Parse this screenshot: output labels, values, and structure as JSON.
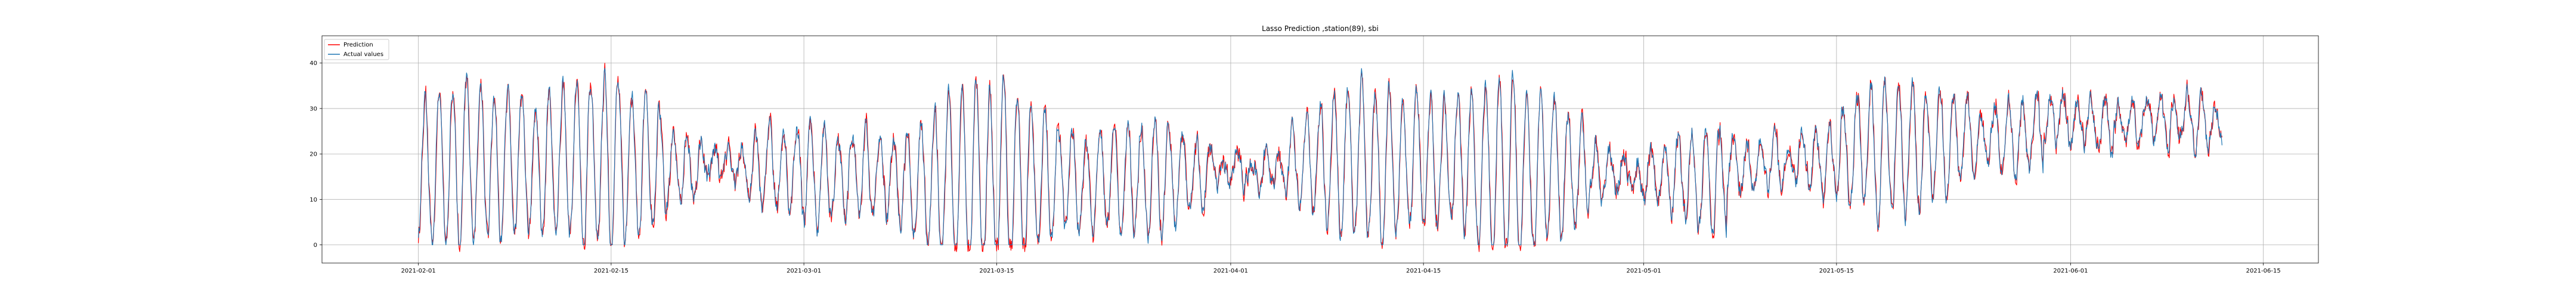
{
  "chart_data": {
    "type": "line",
    "title": "Lasso Prediction ,station(89), sbi",
    "xlabel": "",
    "ylabel": "",
    "xlim": [
      "2021-01-25",
      "2021-06-19"
    ],
    "ylim": [
      -4,
      46
    ],
    "x_ticks": [
      "2021-02-01",
      "2021-02-15",
      "2021-03-01",
      "2021-03-15",
      "2021-04-01",
      "2021-04-15",
      "2021-05-01",
      "2021-05-15",
      "2021-06-01",
      "2021-06-15"
    ],
    "y_ticks": [
      0,
      10,
      20,
      30,
      40
    ],
    "grid": true,
    "legend_position": "top-left",
    "series": [
      {
        "name": "Prediction",
        "color": "#ff0000",
        "values": []
      },
      {
        "name": "Actual values",
        "color": "#1f77b4",
        "values": []
      }
    ],
    "x_start": "2021-02-01",
    "x_end": "2021-06-12"
  }
}
